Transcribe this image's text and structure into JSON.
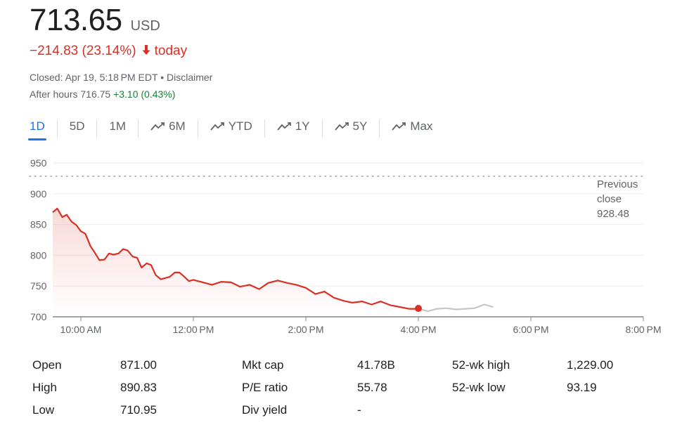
{
  "quote": {
    "price": "713.65",
    "currency": "USD",
    "change": "−214.83 (23.14%)",
    "change_arrow": "🢓",
    "change_suffix": "today",
    "closed_text": "Closed: Apr 19, 5:18 PM EDT • Disclaimer",
    "after_hours_label": "After hours 716.75",
    "after_hours_change": "+3.10 (0.43%)",
    "colors": {
      "down": "#d93025",
      "up": "#188038",
      "accent": "#1a73e8"
    }
  },
  "tabs": [
    {
      "label": "1D",
      "icon": "",
      "active": true
    },
    {
      "label": "5D",
      "icon": "",
      "active": false
    },
    {
      "label": "1M",
      "icon": "",
      "active": false
    },
    {
      "label": "6M",
      "icon": "trend-icon",
      "active": false
    },
    {
      "label": "YTD",
      "icon": "trend-icon",
      "active": false
    },
    {
      "label": "1Y",
      "icon": "trend-icon",
      "active": false
    },
    {
      "label": "5Y",
      "icon": "trend-icon",
      "active": false
    },
    {
      "label": "Max",
      "icon": "trend-icon",
      "active": false
    }
  ],
  "chart_data": {
    "type": "line",
    "y_ticks": [
      "950",
      "900",
      "850",
      "800",
      "750",
      "700"
    ],
    "x_ticks": [
      "10:00 AM",
      "12:00 PM",
      "2:00 PM",
      "4:00 PM",
      "6:00 PM",
      "8:00 PM"
    ],
    "ylim": [
      700,
      950
    ],
    "xlim_hours": [
      9.5,
      20
    ],
    "previous_close": 928.48,
    "previous_close_label": [
      "Previous",
      "close",
      "928.48"
    ],
    "grid": true,
    "series": [
      {
        "session": "regular",
        "color": "#d93025",
        "x": [
          9.5,
          9.58,
          9.67,
          9.75,
          9.83,
          9.92,
          10.0,
          10.08,
          10.17,
          10.25,
          10.33,
          10.42,
          10.5,
          10.58,
          10.67,
          10.75,
          10.83,
          10.92,
          11.0,
          11.08,
          11.17,
          11.25,
          11.33,
          11.42,
          11.5,
          11.58,
          11.67,
          11.75,
          11.83,
          11.92,
          12.0,
          12.17,
          12.33,
          12.5,
          12.67,
          12.83,
          13.0,
          13.17,
          13.33,
          13.5,
          13.67,
          13.83,
          14.0,
          14.17,
          14.33,
          14.5,
          14.67,
          14.83,
          15.0,
          15.17,
          15.33,
          15.5,
          15.67,
          15.83,
          16.0
        ],
        "y": [
          870,
          876,
          862,
          866,
          855,
          849,
          839,
          835,
          815,
          804,
          792,
          793,
          803,
          801,
          803,
          810,
          808,
          798,
          796,
          780,
          787,
          784,
          768,
          761,
          763,
          765,
          772,
          772,
          766,
          758,
          760,
          756,
          752,
          757,
          756,
          749,
          752,
          745,
          755,
          759,
          755,
          752,
          747,
          737,
          741,
          731,
          726,
          723,
          725,
          720,
          725,
          719,
          716,
          713,
          713
        ]
      },
      {
        "session": "after-hours",
        "color": "#c4c7c5",
        "x": [
          16.0,
          16.17,
          16.33,
          16.5,
          16.67,
          16.83,
          17.0,
          17.17,
          17.33
        ],
        "y": [
          713,
          709,
          713,
          714,
          712,
          713,
          714,
          720,
          716
        ]
      }
    ],
    "close_marker": {
      "x": 16.0,
      "y": 713.65
    }
  },
  "stats": [
    [
      {
        "label": "Open",
        "value": "871.00"
      },
      {
        "label": "Mkt cap",
        "value": "41.78B"
      },
      {
        "label": "52-wk high",
        "value": "1,229.00"
      }
    ],
    [
      {
        "label": "High",
        "value": "890.83"
      },
      {
        "label": "P/E ratio",
        "value": "55.78"
      },
      {
        "label": "52-wk low",
        "value": "93.19"
      }
    ],
    [
      {
        "label": "Low",
        "value": "710.95"
      },
      {
        "label": "Div yield",
        "value": "-"
      },
      {
        "label": "",
        "value": ""
      }
    ]
  ]
}
